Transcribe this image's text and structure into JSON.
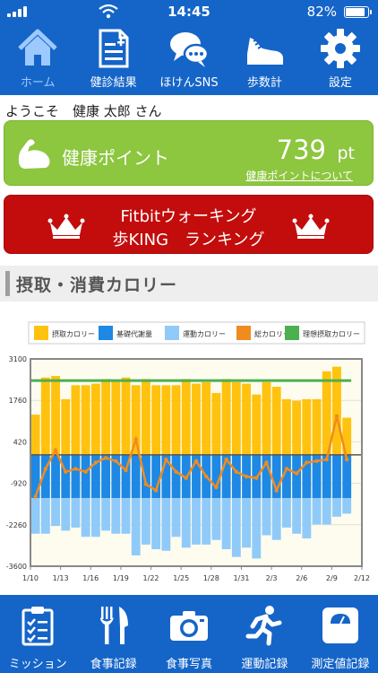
{
  "status": {
    "time": "14:45",
    "battery": "82%"
  },
  "top_nav": {
    "items": [
      {
        "label": "ホーム",
        "icon": "home-icon",
        "active": true
      },
      {
        "label": "健診結果",
        "icon": "document-plus-icon"
      },
      {
        "label": "ほけんSNS",
        "icon": "chat-bubbles-icon"
      },
      {
        "label": "歩数計",
        "icon": "sneaker-icon"
      },
      {
        "label": "設定",
        "icon": "gear-icon"
      }
    ]
  },
  "welcome": "ようこそ　健康 太郎 さん",
  "health_points": {
    "label": "健康ポイント",
    "value": "739",
    "unit": "pt",
    "link": "健康ポイントについて",
    "icon": "muscle-arm-icon"
  },
  "fitbit": {
    "line1": "Fitbitウォーキング",
    "line2": "歩KING　ランキング",
    "icon": "crown-icon"
  },
  "section": {
    "title": "摂取・消費カロリー"
  },
  "colors": {
    "brand": "#1565c8",
    "green": "#8dc63f",
    "red": "#c30c0c",
    "intake": "#ffc20e",
    "basal": "#1e88e5",
    "exercise": "#90caf9",
    "total": "#f08c1e",
    "ideal": "#4caf50"
  },
  "chart_data": {
    "type": "bar",
    "legend": [
      "摂取カロリー",
      "基礎代謝量",
      "運動カロリー",
      "総カロリー",
      "理想摂取カロリー"
    ],
    "y_ticks": [
      "3100",
      "1760",
      "420",
      "-920",
      "-2260",
      "-3600"
    ],
    "ylim": [
      -3600,
      3100
    ],
    "x_ticks": [
      "1/10",
      "1/13",
      "1/16",
      "1/19",
      "1/22",
      "1/25",
      "1/28",
      "1/31",
      "2/3",
      "2/6",
      "2/9",
      "2/12"
    ],
    "x": [
      "1/10",
      "1/11",
      "1/12",
      "1/13",
      "1/14",
      "1/15",
      "1/16",
      "1/17",
      "1/18",
      "1/19",
      "1/20",
      "1/21",
      "1/22",
      "1/23",
      "1/24",
      "1/25",
      "1/26",
      "1/27",
      "1/28",
      "1/29",
      "1/30",
      "1/31",
      "2/1",
      "2/2",
      "2/3",
      "2/4",
      "2/5",
      "2/6",
      "2/7",
      "2/8",
      "2/9",
      "2/10"
    ],
    "intake": [
      1300,
      2500,
      2550,
      1800,
      2250,
      2250,
      2300,
      2450,
      2400,
      2500,
      2250,
      2450,
      2250,
      2250,
      2250,
      2450,
      2300,
      2350,
      2000,
      2450,
      2350,
      2300,
      1950,
      2350,
      2200,
      1800,
      1750,
      1800,
      1800,
      2700,
      2850,
      1200
    ],
    "basal": [
      -1400,
      -1400,
      -1400,
      -1400,
      -1400,
      -1400,
      -1400,
      -1400,
      -1400,
      -1400,
      -1400,
      -1400,
      -1400,
      -1400,
      -1400,
      -1400,
      -1400,
      -1400,
      -1400,
      -1400,
      -1400,
      -1400,
      -1400,
      -1400,
      -1400,
      -1400,
      -1400,
      -1400,
      -1400,
      -1400,
      -1400,
      -1400
    ],
    "exercise": [
      -1150,
      -1150,
      -900,
      -1050,
      -950,
      -1250,
      -1250,
      -1050,
      -1150,
      -1150,
      -1850,
      -1500,
      -1650,
      -1700,
      -1250,
      -1600,
      -1500,
      -1500,
      -1350,
      -1650,
      -1900,
      -1600,
      -1950,
      -1200,
      -1350,
      -950,
      -1150,
      -1300,
      -850,
      -850,
      -600,
      -500
    ],
    "total": [
      -1350,
      -450,
      150,
      -550,
      -450,
      -550,
      -250,
      -100,
      -200,
      -500,
      500,
      -950,
      -1150,
      -150,
      -550,
      -750,
      -200,
      -700,
      -1050,
      -150,
      -550,
      -700,
      -750,
      -250,
      -1150,
      -450,
      -600,
      -250,
      -200,
      -150,
      1250,
      -150
    ],
    "ideal": 2400
  },
  "bottom_nav": {
    "items": [
      {
        "label": "ミッション",
        "icon": "clipboard-check-icon"
      },
      {
        "label": "食事記録",
        "icon": "fork-knife-icon"
      },
      {
        "label": "食事写真",
        "icon": "camera-icon"
      },
      {
        "label": "運動記録",
        "icon": "runner-icon"
      },
      {
        "label": "測定値記録",
        "icon": "scale-icon"
      }
    ]
  }
}
